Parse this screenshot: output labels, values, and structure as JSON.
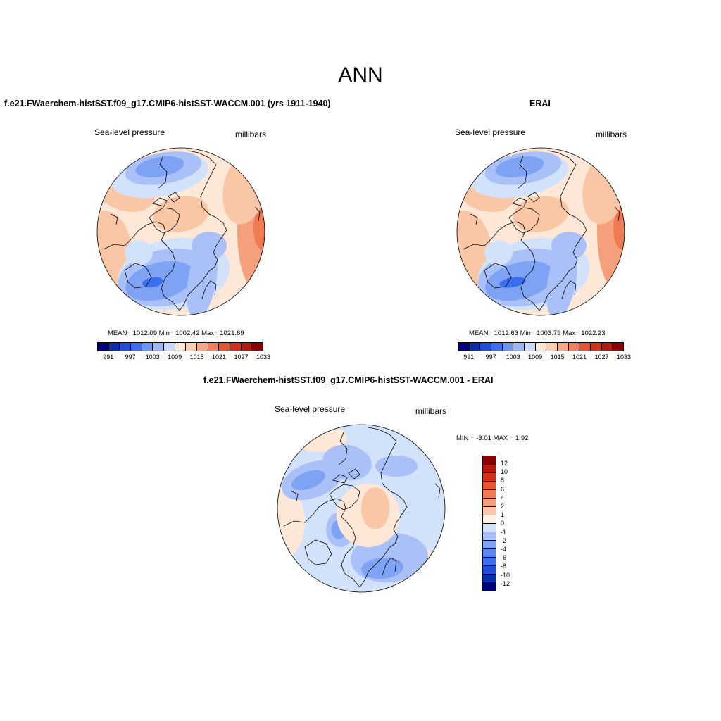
{
  "main_title": "ANN",
  "panels": [
    {
      "title": "f.e21.FWaerchem-histSST.f09_g17.CMIP6-histSST-WACCM.001 (yrs 1911-1940)",
      "variable": "Sea-level pressure",
      "units": "millibars",
      "stats": "MEAN= 1012.09  Min= 1002.42  Max= 1021.69"
    },
    {
      "title": "ERAI",
      "variable": "Sea-level pressure",
      "units": "millibars",
      "stats": "MEAN= 1012.63  Min= 1003.79  Max= 1022.23"
    },
    {
      "title": "f.e21.FWaerchem-histSST.f09_g17.CMIP6-histSST-WACCM.001 - ERAI",
      "variable": "Sea-level pressure",
      "units": "millibars",
      "stats": "MIN =  -3.01 MAX =   1.92"
    }
  ],
  "abs_colorbar": {
    "ticks": [
      "991",
      "997",
      "1003",
      "1009",
      "1015",
      "1021",
      "1027",
      "1033"
    ],
    "colors": [
      "#000080",
      "#0a2fa8",
      "#1f4fd8",
      "#3a6ff0",
      "#6a96f5",
      "#9ab8f7",
      "#c8d9fb",
      "#fde8d8",
      "#fbcdb0",
      "#f7a886",
      "#f27f5e",
      "#e8552f",
      "#d4301a",
      "#b51a0c",
      "#8b0000"
    ]
  },
  "diff_colorbar": {
    "ticks": [
      "12",
      "10",
      "8",
      "6",
      "4",
      "2",
      "1",
      "0",
      "-1",
      "-2",
      "-4",
      "-6",
      "-8",
      "-10",
      "-12"
    ],
    "colors": [
      "#000080",
      "#0a2fa8",
      "#1f4fd8",
      "#3a6ff0",
      "#5a88f3",
      "#7ea3f5",
      "#a9c1f8",
      "#d2e2fb",
      "#fdf0e4",
      "#f9c6a6",
      "#f5a07c",
      "#f07a52",
      "#e8552f",
      "#d4301a",
      "#b51a0c",
      "#8b0000"
    ]
  },
  "map_colors": {
    "deep_low": "#3a6ff0",
    "low": "#7ea3f5",
    "mid_low": "#a9c1f8",
    "light_low": "#d2e2fb",
    "light_high": "#fde8d8",
    "high": "#f9c6a6",
    "higher": "#f5a07c",
    "highest": "#f07a52"
  }
}
